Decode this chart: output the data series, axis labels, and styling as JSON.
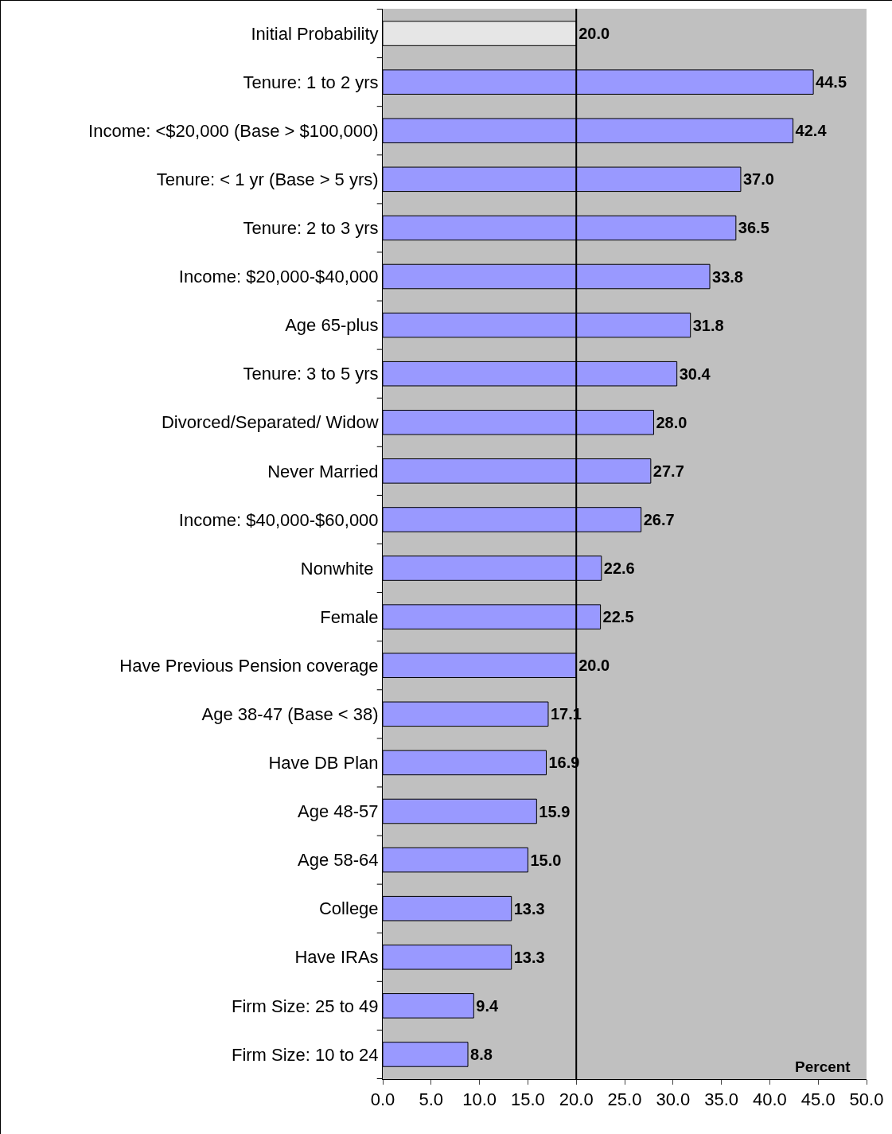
{
  "chart_data": {
    "type": "bar",
    "orientation": "horizontal",
    "xlabel": "Percent",
    "categories": [
      "Initial Probability",
      "Tenure: 1 to 2 yrs",
      "Income: <$20,000 (Base > $100,000)",
      "Tenure: < 1 yr (Base > 5 yrs)",
      "Tenure: 2 to 3 yrs",
      "Income: $20,000-$40,000",
      "Age 65-plus",
      "Tenure: 3 to 5 yrs",
      "Divorced/Separated/ Widow",
      "Never Married",
      "Income: $40,000-$60,000",
      "Nonwhite ",
      "Female",
      "Have Previous Pension coverage",
      "Age 38-47 (Base < 38)",
      "Have DB Plan",
      "Age 48-57",
      "Age 58-64",
      "College",
      "Have IRAs",
      "Firm Size: 25 to 49",
      "Firm Size: 10 to 24"
    ],
    "values": [
      20.0,
      44.5,
      42.4,
      37.0,
      36.5,
      33.8,
      31.8,
      30.4,
      28.0,
      27.7,
      26.7,
      22.6,
      22.5,
      20.0,
      17.1,
      16.9,
      15.9,
      15.0,
      13.3,
      13.3,
      9.4,
      8.8
    ],
    "value_labels": [
      "20.0",
      "44.5",
      "42.4",
      "37.0",
      "36.5",
      "33.8",
      "31.8",
      "30.4",
      "28.0",
      "27.7",
      "26.7",
      "22.6",
      "22.5",
      "20.0",
      "17.1",
      "16.9",
      "15.9",
      "15.0",
      "13.3",
      "13.3",
      "9.4",
      "8.8"
    ],
    "colors": [
      "#e6e6e6",
      "#9999ff",
      "#9999ff",
      "#9999ff",
      "#9999ff",
      "#9999ff",
      "#9999ff",
      "#9999ff",
      "#9999ff",
      "#9999ff",
      "#9999ff",
      "#9999ff",
      "#9999ff",
      "#9999ff",
      "#9999ff",
      "#9999ff",
      "#9999ff",
      "#9999ff",
      "#9999ff",
      "#9999ff",
      "#9999ff",
      "#9999ff"
    ],
    "xlim": [
      0,
      50
    ],
    "xticks": [
      {
        "value": 0,
        "label": "0.0"
      },
      {
        "value": 5,
        "label": "5.0"
      },
      {
        "value": 10,
        "label": "10.0"
      },
      {
        "value": 15,
        "label": "15.0"
      },
      {
        "value": 20,
        "label": "20.0"
      },
      {
        "value": 25,
        "label": "25.0"
      },
      {
        "value": 30,
        "label": "30.0"
      },
      {
        "value": 35,
        "label": "35.0"
      },
      {
        "value": 40,
        "label": "40.0"
      },
      {
        "value": 45,
        "label": "45.0"
      },
      {
        "value": 50,
        "label": "50.0"
      }
    ],
    "ref_lines": [
      {
        "axis": "x",
        "value": 20,
        "color": "#000000"
      }
    ],
    "grid": false
  }
}
